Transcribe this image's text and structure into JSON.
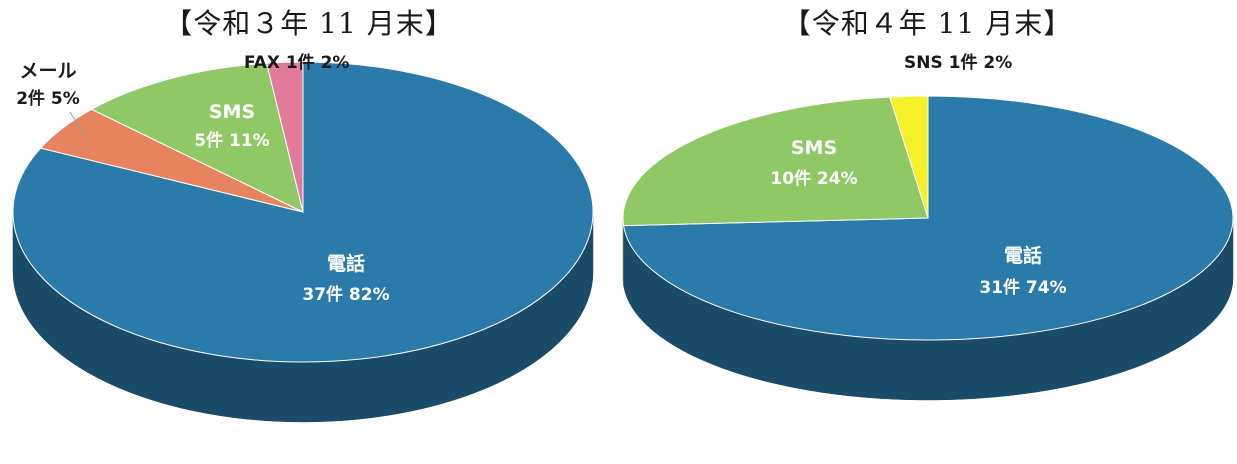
{
  "chart_data": [
    {
      "type": "pie",
      "title": "【令和３年 11 月末】",
      "slices": [
        {
          "label": "電話",
          "count_text": "37件 82%",
          "value": 82,
          "color": "#2a7aaa"
        },
        {
          "label": "メール",
          "count_text": "2件 5%",
          "value": 5,
          "color": "#e8835f"
        },
        {
          "label": "SMS",
          "count_text": "5件 11%",
          "value": 11,
          "color": "#8fc865"
        },
        {
          "label": "FAX",
          "count_text": "1件 2%",
          "value": 2,
          "color": "#e27b9b"
        }
      ]
    },
    {
      "type": "pie",
      "title": "【令和４年 11 月末】",
      "slices": [
        {
          "label": "電話",
          "count_text": "31件 74%",
          "value": 74,
          "color": "#2a7aaa"
        },
        {
          "label": "SMS",
          "count_text": "10件 24%",
          "value": 24,
          "color": "#8fc865"
        },
        {
          "label": "SNS",
          "count_text": "1件 2%",
          "value": 2,
          "color": "#f4f02a"
        }
      ]
    }
  ]
}
